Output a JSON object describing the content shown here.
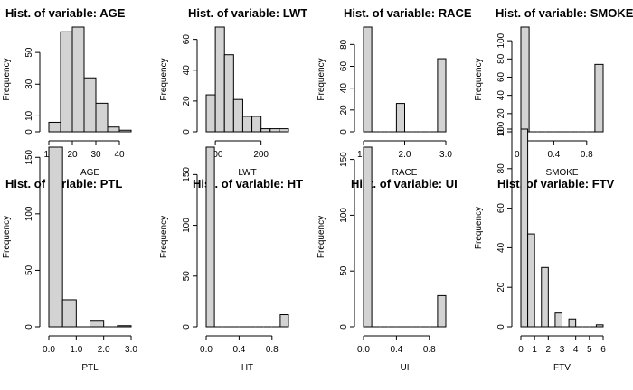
{
  "chart_data": [
    {
      "type": "bar",
      "title": "Hist. of variable: AGE",
      "xlabel": "AGE",
      "ylabel": "Frequency",
      "bin_edges": [
        10,
        15,
        20,
        25,
        30,
        35,
        40,
        45
      ],
      "values": [
        6,
        63,
        66,
        34,
        18,
        3,
        1
      ],
      "xlim": [
        10,
        45
      ],
      "ylim": [
        0,
        66
      ],
      "xticks": [
        10,
        20,
        30,
        40
      ],
      "yticks": [
        0,
        10,
        30,
        50
      ]
    },
    {
      "type": "bar",
      "title": "Hist. of variable: LWT",
      "xlabel": "LWT",
      "ylabel": "Frequency",
      "bin_edges": [
        80,
        100,
        120,
        140,
        160,
        180,
        200,
        220,
        240,
        260
      ],
      "values": [
        24,
        68,
        50,
        21,
        10,
        10,
        2,
        2,
        2
      ],
      "xlim": [
        80,
        260
      ],
      "ylim": [
        0,
        68
      ],
      "xticks": [
        100,
        200
      ],
      "yticks": [
        0,
        20,
        40,
        60
      ]
    },
    {
      "type": "bar",
      "title": "Hist. of variable: RACE",
      "xlabel": "RACE",
      "ylabel": "Frequency",
      "bin_edges": [
        1.0,
        1.2,
        1.4,
        1.6,
        1.8,
        2.0,
        2.2,
        2.4,
        2.6,
        2.8,
        3.0
      ],
      "values": [
        96,
        0,
        0,
        0,
        26,
        0,
        0,
        0,
        0,
        67
      ],
      "xlim": [
        1.0,
        3.0
      ],
      "ylim": [
        0,
        96
      ],
      "xticks": [
        1.0,
        2.0,
        3.0
      ],
      "xtick_labels": [
        "1.0",
        "2.0",
        "3.0"
      ],
      "yticks": [
        0,
        20,
        40,
        60,
        80
      ]
    },
    {
      "type": "bar",
      "title": "Hist. of variable: SMOKE",
      "xlabel": "SMOKE",
      "ylabel": "Frequency",
      "bin_edges": [
        0,
        0.1,
        0.2,
        0.3,
        0.4,
        0.5,
        0.6,
        0.7,
        0.8,
        0.9,
        1.0
      ],
      "values": [
        115,
        0,
        0,
        0,
        0,
        0,
        0,
        0,
        0,
        74
      ],
      "xlim": [
        0,
        1
      ],
      "ylim": [
        0,
        115
      ],
      "xticks": [
        0,
        0.4,
        0.8
      ],
      "xtick_labels": [
        "0.0",
        "0.4",
        "0.8"
      ],
      "yticks": [
        0,
        20,
        40,
        60,
        80,
        100
      ]
    },
    {
      "type": "bar",
      "title": "Hist. of variable: PTL",
      "xlabel": "PTL",
      "ylabel": "Frequency",
      "bin_edges": [
        0,
        0.5,
        1.0,
        1.5,
        2.0,
        2.5,
        3.0
      ],
      "values": [
        159,
        24,
        0,
        5,
        0,
        1
      ],
      "xlim": [
        0,
        3
      ],
      "ylim": [
        0,
        159
      ],
      "xticks": [
        0,
        1,
        2,
        3
      ],
      "xtick_labels": [
        "0.0",
        "1.0",
        "2.0",
        "3.0"
      ],
      "yticks": [
        0,
        50,
        100,
        150
      ]
    },
    {
      "type": "bar",
      "title": "Hist. of variable: HT",
      "xlabel": "HT",
      "ylabel": "Frequency",
      "bin_edges": [
        0,
        0.1,
        0.2,
        0.3,
        0.4,
        0.5,
        0.6,
        0.7,
        0.8,
        0.9,
        1.0
      ],
      "values": [
        177,
        0,
        0,
        0,
        0,
        0,
        0,
        0,
        0,
        12
      ],
      "xlim": [
        0,
        1
      ],
      "ylim": [
        0,
        177
      ],
      "xticks": [
        0,
        0.4,
        0.8
      ],
      "xtick_labels": [
        "0.0",
        "0.4",
        "0.8"
      ],
      "yticks": [
        0,
        50,
        100,
        150
      ]
    },
    {
      "type": "bar",
      "title": "Hist. of variable: UI",
      "xlabel": "UI",
      "ylabel": "Frequency",
      "bin_edges": [
        0,
        0.1,
        0.2,
        0.3,
        0.4,
        0.5,
        0.6,
        0.7,
        0.8,
        0.9,
        1.0
      ],
      "values": [
        161,
        0,
        0,
        0,
        0,
        0,
        0,
        0,
        0,
        28
      ],
      "xlim": [
        0,
        1
      ],
      "ylim": [
        0,
        161
      ],
      "xticks": [
        0,
        0.4,
        0.8
      ],
      "xtick_labels": [
        "0.0",
        "0.4",
        "0.8"
      ],
      "yticks": [
        0,
        50,
        100,
        150
      ]
    },
    {
      "type": "bar",
      "title": "Hist. of variable: FTV",
      "xlabel": "FTV",
      "ylabel": "Frequency",
      "bin_edges": [
        0,
        0.5,
        1,
        1.5,
        2,
        2.5,
        3,
        3.5,
        4,
        4.5,
        5,
        5.5,
        6
      ],
      "values": [
        100,
        47,
        0,
        30,
        0,
        7,
        0,
        4,
        0,
        0,
        0,
        1
      ],
      "xlim": [
        0,
        6
      ],
      "ylim": [
        0,
        100
      ],
      "xticks": [
        0,
        1,
        2,
        3,
        4,
        5,
        6
      ],
      "yticks": [
        0,
        20,
        40,
        60,
        80,
        100
      ]
    }
  ]
}
